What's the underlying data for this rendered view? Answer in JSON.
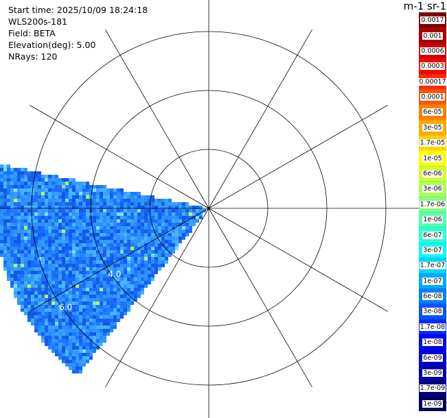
{
  "info": {
    "start_time": "Start time: 2025/10/09 18:24:18",
    "instrument": "WLS200s-181",
    "field": "Field: BETA",
    "elevation": "Elevation(deg): 5.00",
    "nrays": "NRays: 120"
  },
  "colorbar": {
    "unit_label": "m-1 sr-1",
    "levels": [
      {
        "label": "0.0017",
        "color": "#800000"
      },
      {
        "label": "0.001",
        "color": "#a80000"
      },
      {
        "label": "0.0006",
        "color": "#d40000"
      },
      {
        "label": "0.0003",
        "color": "#ff0000"
      },
      {
        "label": "0.00017",
        "color": "#ff2a00"
      },
      {
        "label": "0.0001",
        "color": "#ff5500"
      },
      {
        "label": "6e-05",
        "color": "#ff8000"
      },
      {
        "label": "3e-05",
        "color": "#ffaa00"
      },
      {
        "label": "1.7e-05",
        "color": "#ffd400"
      },
      {
        "label": "1e-05",
        "color": "#ffff00"
      },
      {
        "label": "6e-06",
        "color": "#d4ff2b"
      },
      {
        "label": "3e-06",
        "color": "#aaff55"
      },
      {
        "label": "1.7e-06",
        "color": "#80ff80"
      },
      {
        "label": "1e-06",
        "color": "#55ffaa"
      },
      {
        "label": "6e-07",
        "color": "#2bffd4"
      },
      {
        "label": "3e-07",
        "color": "#00ffff"
      },
      {
        "label": "1.7e-07",
        "color": "#00d4ff"
      },
      {
        "label": "1e-07",
        "color": "#00aaff"
      },
      {
        "label": "6e-08",
        "color": "#0080ff"
      },
      {
        "label": "3e-08",
        "color": "#0055ff"
      },
      {
        "label": "1.7e-08",
        "color": "#002bff"
      },
      {
        "label": "1e-08",
        "color": "#0000ff"
      },
      {
        "label": "6e-09",
        "color": "#0000d4"
      },
      {
        "label": "3e-09",
        "color": "#0000aa"
      },
      {
        "label": "1.7e-09",
        "color": "#000080"
      },
      {
        "label": "1e-09",
        "color": "#000060"
      }
    ]
  },
  "chart_data": {
    "type": "heatmap",
    "projection": "polar (PPI radar scan)",
    "field": "BETA",
    "elevation_deg": 5.0,
    "nrays": 120,
    "azimuth_coverage_deg": [
      218,
      282
    ],
    "grid_rings_km": [
      2,
      4,
      6
    ],
    "ring_labels": [
      "4.0",
      "6.0"
    ],
    "grid_spokes_deg": [
      0,
      30,
      60,
      90,
      120,
      150,
      180,
      210,
      240,
      270,
      300,
      330
    ],
    "dominant_value_range": [
      "1e-08",
      "1e-07"
    ],
    "colormap": "jet"
  }
}
